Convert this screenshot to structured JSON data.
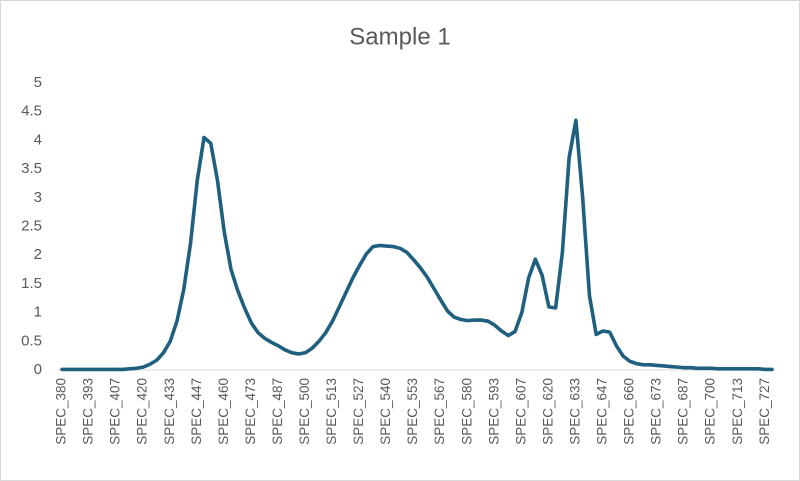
{
  "chart_data": {
    "type": "line",
    "title": "Sample 1",
    "categories": [
      "SPEC_380",
      null,
      null,
      null,
      "SPEC_393",
      null,
      null,
      null,
      "SPEC_407",
      null,
      null,
      null,
      "SPEC_420",
      null,
      null,
      null,
      "SPEC_433",
      null,
      null,
      null,
      "SPEC_447",
      null,
      null,
      null,
      "SPEC_460",
      null,
      null,
      null,
      "SPEC_473",
      null,
      null,
      null,
      "SPEC_487",
      null,
      null,
      null,
      "SPEC_500",
      null,
      null,
      null,
      "SPEC_513",
      null,
      null,
      null,
      "SPEC_527",
      null,
      null,
      null,
      "SPEC_540",
      null,
      null,
      null,
      "SPEC_553",
      null,
      null,
      null,
      "SPEC_567",
      null,
      null,
      null,
      "SPEC_580",
      null,
      null,
      null,
      "SPEC_593",
      null,
      null,
      null,
      "SPEC_607",
      null,
      null,
      null,
      "SPEC_620",
      null,
      null,
      null,
      "SPEC_633",
      null,
      null,
      null,
      "SPEC_647",
      null,
      null,
      null,
      "SPEC_660",
      null,
      null,
      null,
      "SPEC_673",
      null,
      null,
      null,
      "SPEC_687",
      null,
      null,
      null,
      "SPEC_700",
      null,
      null,
      null,
      "SPEC_713",
      null,
      null,
      null,
      "SPEC_727",
      null
    ],
    "values": [
      0.01,
      0.01,
      0.01,
      0.01,
      0.01,
      0.01,
      0.01,
      0.01,
      0.01,
      0.01,
      0.02,
      0.03,
      0.05,
      0.1,
      0.17,
      0.3,
      0.5,
      0.85,
      1.4,
      2.2,
      3.3,
      4.05,
      3.95,
      3.3,
      2.4,
      1.75,
      1.38,
      1.08,
      0.82,
      0.65,
      0.55,
      0.48,
      0.42,
      0.35,
      0.3,
      0.28,
      0.3,
      0.38,
      0.5,
      0.65,
      0.85,
      1.1,
      1.35,
      1.6,
      1.82,
      2.02,
      2.15,
      2.17,
      2.16,
      2.15,
      2.12,
      2.05,
      1.92,
      1.78,
      1.62,
      1.42,
      1.22,
      1.03,
      0.92,
      0.88,
      0.86,
      0.87,
      0.87,
      0.85,
      0.78,
      0.68,
      0.6,
      0.67,
      1.0,
      1.6,
      1.93,
      1.65,
      1.1,
      1.08,
      2.05,
      3.7,
      4.35,
      3.0,
      1.3,
      0.62,
      0.68,
      0.66,
      0.42,
      0.24,
      0.15,
      0.11,
      0.09,
      0.09,
      0.08,
      0.07,
      0.06,
      0.05,
      0.04,
      0.04,
      0.03,
      0.03,
      0.03,
      0.02,
      0.02,
      0.02,
      0.02,
      0.02,
      0.02,
      0.02,
      0.01,
      0.01
    ],
    "color": "#1f5f7f",
    "ylim": [
      0,
      5
    ],
    "yticks": [
      0,
      0.5,
      1,
      1.5,
      2,
      2.5,
      3,
      3.5,
      4,
      4.5,
      5
    ],
    "grid": false
  }
}
